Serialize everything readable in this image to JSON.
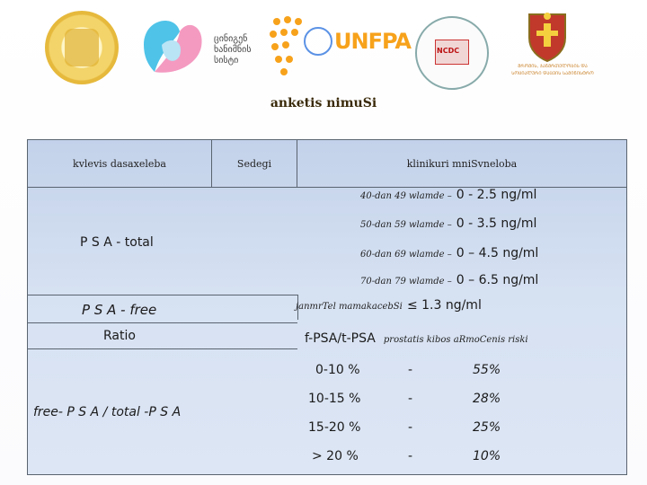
{
  "header": {
    "logo2_text": [
      "ცინიგენ",
      "ხანიმნის",
      "სისტი"
    ],
    "unfpa_label": "UNFPA",
    "ncdc_label": "NCDC",
    "ministry_text": "ᲨᲠᲝᲛᲘᲡ, ᲯᲐᲜᲛᲠᲗᲔᲚᲝᲑᲘᲡ ᲓᲐ ᲡᲝᲪᲘᲐᲚᲣᲠᲘ ᲓᲐᲪᲕᲘᲡ ᲡᲐᲛᲘᲜᲘᲡᲢᲠᲝ"
  },
  "title": "anketis nimuSi",
  "table": {
    "col1_header": "kvlevis dasaxeleba",
    "col2_header": "Sedegi",
    "col3_header": "klinikuri mniSvneloba",
    "psa_total": {
      "label": "P S A - total",
      "rows": [
        {
          "age": "40-dan 49 wlamde –",
          "range": "0 - 2.5 ng/ml"
        },
        {
          "age": "50-dan 59 wlamde –",
          "range": "0 - 3.5 ng/ml"
        },
        {
          "age": "60-dan 69 wlamde –",
          "range": "0 – 4.5 ng/ml"
        },
        {
          "age": "70-dan 79 wlamde –",
          "range": "0 – 6.5 ng/ml"
        }
      ]
    },
    "psa_free": {
      "label": "P S A - free",
      "note": "janmrTel mamakacebSi",
      "value": "≤ 1.3 ng/ml"
    },
    "ratio": {
      "label": "Ratio",
      "formula": "f-PSA/t-PSA",
      "note": "prostatis kibos aRmoCenis riski"
    },
    "free_total": {
      "label": "free- P S A / total -P S A",
      "rows": [
        {
          "range": "0-10 %",
          "dash": "-",
          "risk": "55%"
        },
        {
          "range": "10-15 %",
          "dash": "-",
          "risk": "28%"
        },
        {
          "range": "15-20 %",
          "dash": "-",
          "risk": "25%"
        },
        {
          "range": "> 20 %",
          "dash": "-",
          "risk": "10%"
        }
      ]
    }
  }
}
